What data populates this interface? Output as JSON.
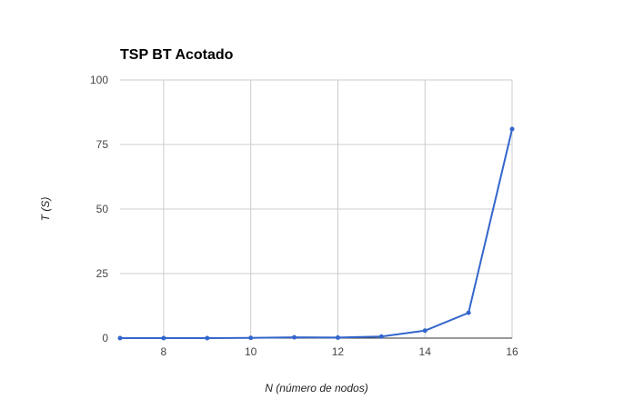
{
  "chart_data": {
    "type": "line",
    "title": "TSP BT Acotado",
    "xlabel": "N (número de nodos)",
    "ylabel": "T (S)",
    "xlim": [
      7,
      16
    ],
    "ylim": [
      0,
      100
    ],
    "x_ticks": [
      8,
      10,
      12,
      14,
      16
    ],
    "y_ticks": [
      0,
      25,
      50,
      75,
      100
    ],
    "grid": true,
    "legend": "none",
    "series": [
      {
        "color": "#3366cc",
        "points": [
          {
            "x": 7,
            "y": 0.0
          },
          {
            "x": 8,
            "y": 0.0
          },
          {
            "x": 9,
            "y": 0.0
          },
          {
            "x": 10,
            "y": 0.1
          },
          {
            "x": 11,
            "y": 0.3
          },
          {
            "x": 12,
            "y": 0.2
          },
          {
            "x": 13,
            "y": 0.6
          },
          {
            "x": 14,
            "y": 2.9
          },
          {
            "x": 15,
            "y": 9.8
          },
          {
            "x": 16,
            "y": 81.0
          }
        ]
      }
    ]
  }
}
